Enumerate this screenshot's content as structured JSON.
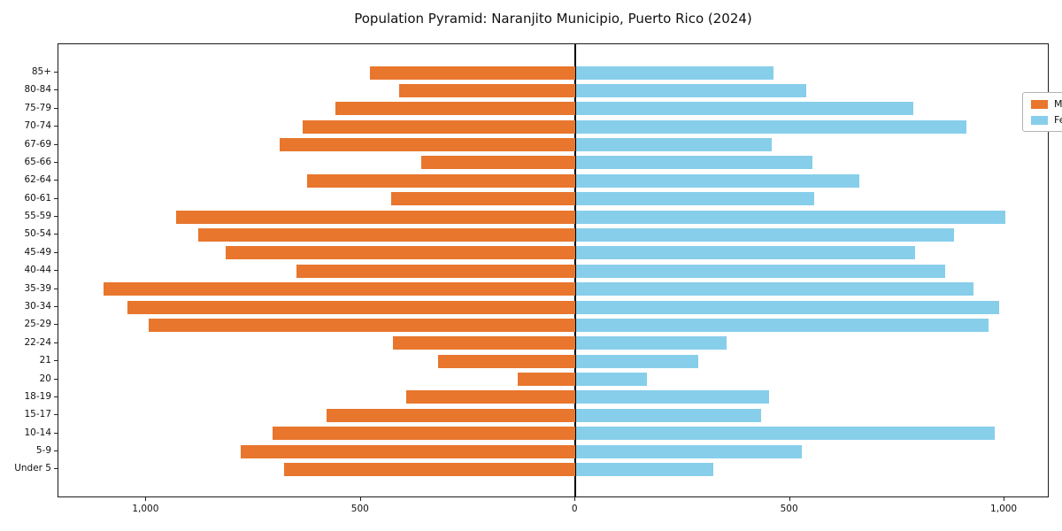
{
  "title": "Population Pyramid: Naranjito Municipio, Puerto Rico (2024)",
  "legend": {
    "male_label": "Male",
    "female_label": "Female"
  },
  "colors": {
    "male": "#e8762d",
    "female": "#87ceeb",
    "axis": "#000000",
    "legend_border": "#b3b3b3"
  },
  "chart_data": {
    "type": "bar",
    "variant": "population-pyramid",
    "title": "Population Pyramid: Naranjito Municipio, Puerto Rico (2024)",
    "categories": [
      "85+",
      "80-84",
      "75-79",
      "70-74",
      "67-69",
      "65-66",
      "62-64",
      "60-61",
      "55-59",
      "50-54",
      "45-49",
      "40-44",
      "35-39",
      "30-34",
      "25-29",
      "22-24",
      "21",
      "20",
      "18-19",
      "15-17",
      "10-14",
      "5-9",
      "Under 5"
    ],
    "series": [
      {
        "name": "Male",
        "side": "left",
        "color": "#e8762d",
        "values": [
          480,
          410,
          560,
          635,
          690,
          360,
          625,
          430,
          930,
          880,
          815,
          650,
          1100,
          1045,
          995,
          425,
          320,
          135,
          395,
          580,
          705,
          780,
          680
        ]
      },
      {
        "name": "Female",
        "side": "right",
        "color": "#87ceeb",
        "values": [
          460,
          535,
          785,
          910,
          455,
          550,
          660,
          555,
          1000,
          880,
          790,
          860,
          925,
          985,
          960,
          350,
          285,
          165,
          450,
          430,
          975,
          525,
          320
        ]
      }
    ],
    "x_tick_values": [
      -1000,
      -500,
      0,
      500,
      1000
    ],
    "x_tick_labels": [
      "1,000",
      "500",
      "0",
      "500",
      "1,000"
    ],
    "xlim": [
      -1205,
      1105
    ],
    "grid": false,
    "legend_position": "upper right"
  }
}
